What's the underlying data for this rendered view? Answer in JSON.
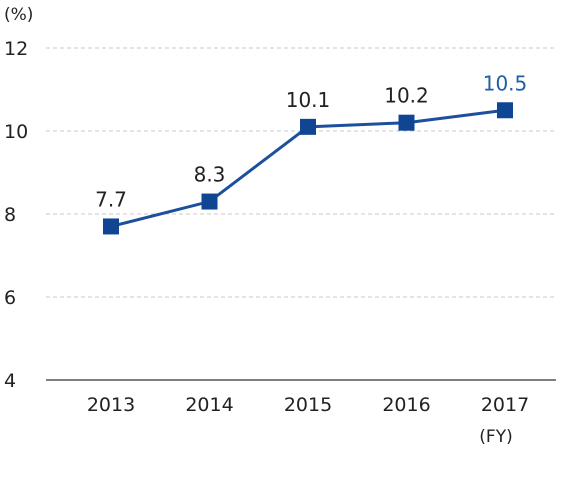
{
  "chart_data": {
    "type": "line",
    "title": "",
    "xlabel": "(FY)",
    "ylabel": "(%)",
    "categories": [
      "2013",
      "2014",
      "2015",
      "2016",
      "2017"
    ],
    "series": [
      {
        "name": "",
        "values": [
          7.7,
          8.3,
          10.1,
          10.2,
          10.5
        ],
        "data_labels": [
          "7.7",
          "8.3",
          "10.1",
          "10.2",
          "10.5"
        ]
      }
    ],
    "ylim": [
      4,
      12
    ],
    "yticks": [
      "4",
      "6",
      "8",
      "10",
      "12"
    ],
    "grid": true,
    "legend": "none",
    "highlight_index": 4,
    "colors": {
      "line": "#1c4f9c",
      "marker": "#0f4593",
      "highlight_label": "#1f5fa6",
      "grid": "#c8c8c8",
      "axis": "#555555"
    }
  }
}
